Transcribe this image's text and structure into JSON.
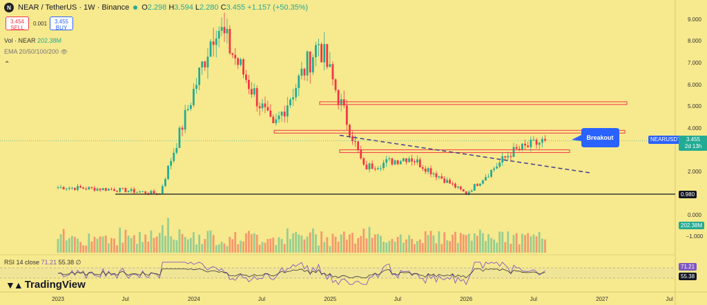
{
  "header": {
    "symbol_title": "NEAR / TetherUS · 1W · Binance",
    "open_label": "O",
    "open": "2.298",
    "high_label": "H",
    "high": "3.594",
    "low_label": "L",
    "low": "2.280",
    "close_label": "C",
    "close": "3.455",
    "change": "+1.157 (+50.35%)"
  },
  "trade": {
    "sell_price": "3.454",
    "sell_label": "SELL",
    "spread": "0.001",
    "buy_price": "3.455",
    "buy_label": "BUY"
  },
  "indicators": {
    "volume": "Vol · NEAR",
    "volume_value": "202.38M",
    "ema": "EMA 20/50/100/200",
    "rsi_label": "RSI 14 close",
    "rsi_value1": "71.21",
    "rsi_value2": "55.38"
  },
  "annotation": {
    "breakout": "Breakout",
    "symbol_tag": "NEARUSDT",
    "time_left": "2d 13h"
  },
  "price_axis": [
    "9.000",
    "8.000",
    "7.000",
    "6.000",
    "5.000",
    "4.000",
    "2.000",
    "0.000",
    "−1.000"
  ],
  "price_badges": {
    "current": "3.455",
    "support": "0.980",
    "volume": "202.38M",
    "rsi1": "71.21",
    "rsi2": "55.38"
  },
  "time_axis": [
    "2023",
    "Jul",
    "2024",
    "Jul",
    "2025",
    "Jul",
    "2026",
    "Jul",
    "2027",
    "Jul"
  ],
  "brand": "TradingView",
  "colors": {
    "background": "#f7e98e",
    "up": "#22ab94",
    "down": "#f23645",
    "support": "#131722",
    "trendline": "#3b3f8f",
    "resistance": "#f23645",
    "annotation": "#2962ff"
  },
  "chart_data": {
    "type": "candlestick",
    "interval": "1W",
    "pair": "NEAR/USDT",
    "key_points": [
      {
        "date": "2023-01",
        "price": 1.3
      },
      {
        "date": "2023-06",
        "price": 1.2
      },
      {
        "date": "2023-10",
        "price": 1.0
      },
      {
        "date": "2024-03",
        "price": 8.9
      },
      {
        "date": "2024-08",
        "price": 4.0
      },
      {
        "date": "2024-12",
        "price": 8.0
      },
      {
        "date": "2025-04",
        "price": 2.2
      },
      {
        "date": "2025-08",
        "price": 2.7
      },
      {
        "date": "2026-01",
        "price": 1.0
      },
      {
        "date": "2026-05",
        "price": 2.9
      },
      {
        "date": "2026-08",
        "price": 3.455
      }
    ],
    "horizontal_levels": [
      5.2,
      3.9,
      3.0,
      0.98
    ],
    "support": 0.98,
    "current_price": 3.455,
    "rsi": [
      71.21,
      55.38
    ]
  }
}
